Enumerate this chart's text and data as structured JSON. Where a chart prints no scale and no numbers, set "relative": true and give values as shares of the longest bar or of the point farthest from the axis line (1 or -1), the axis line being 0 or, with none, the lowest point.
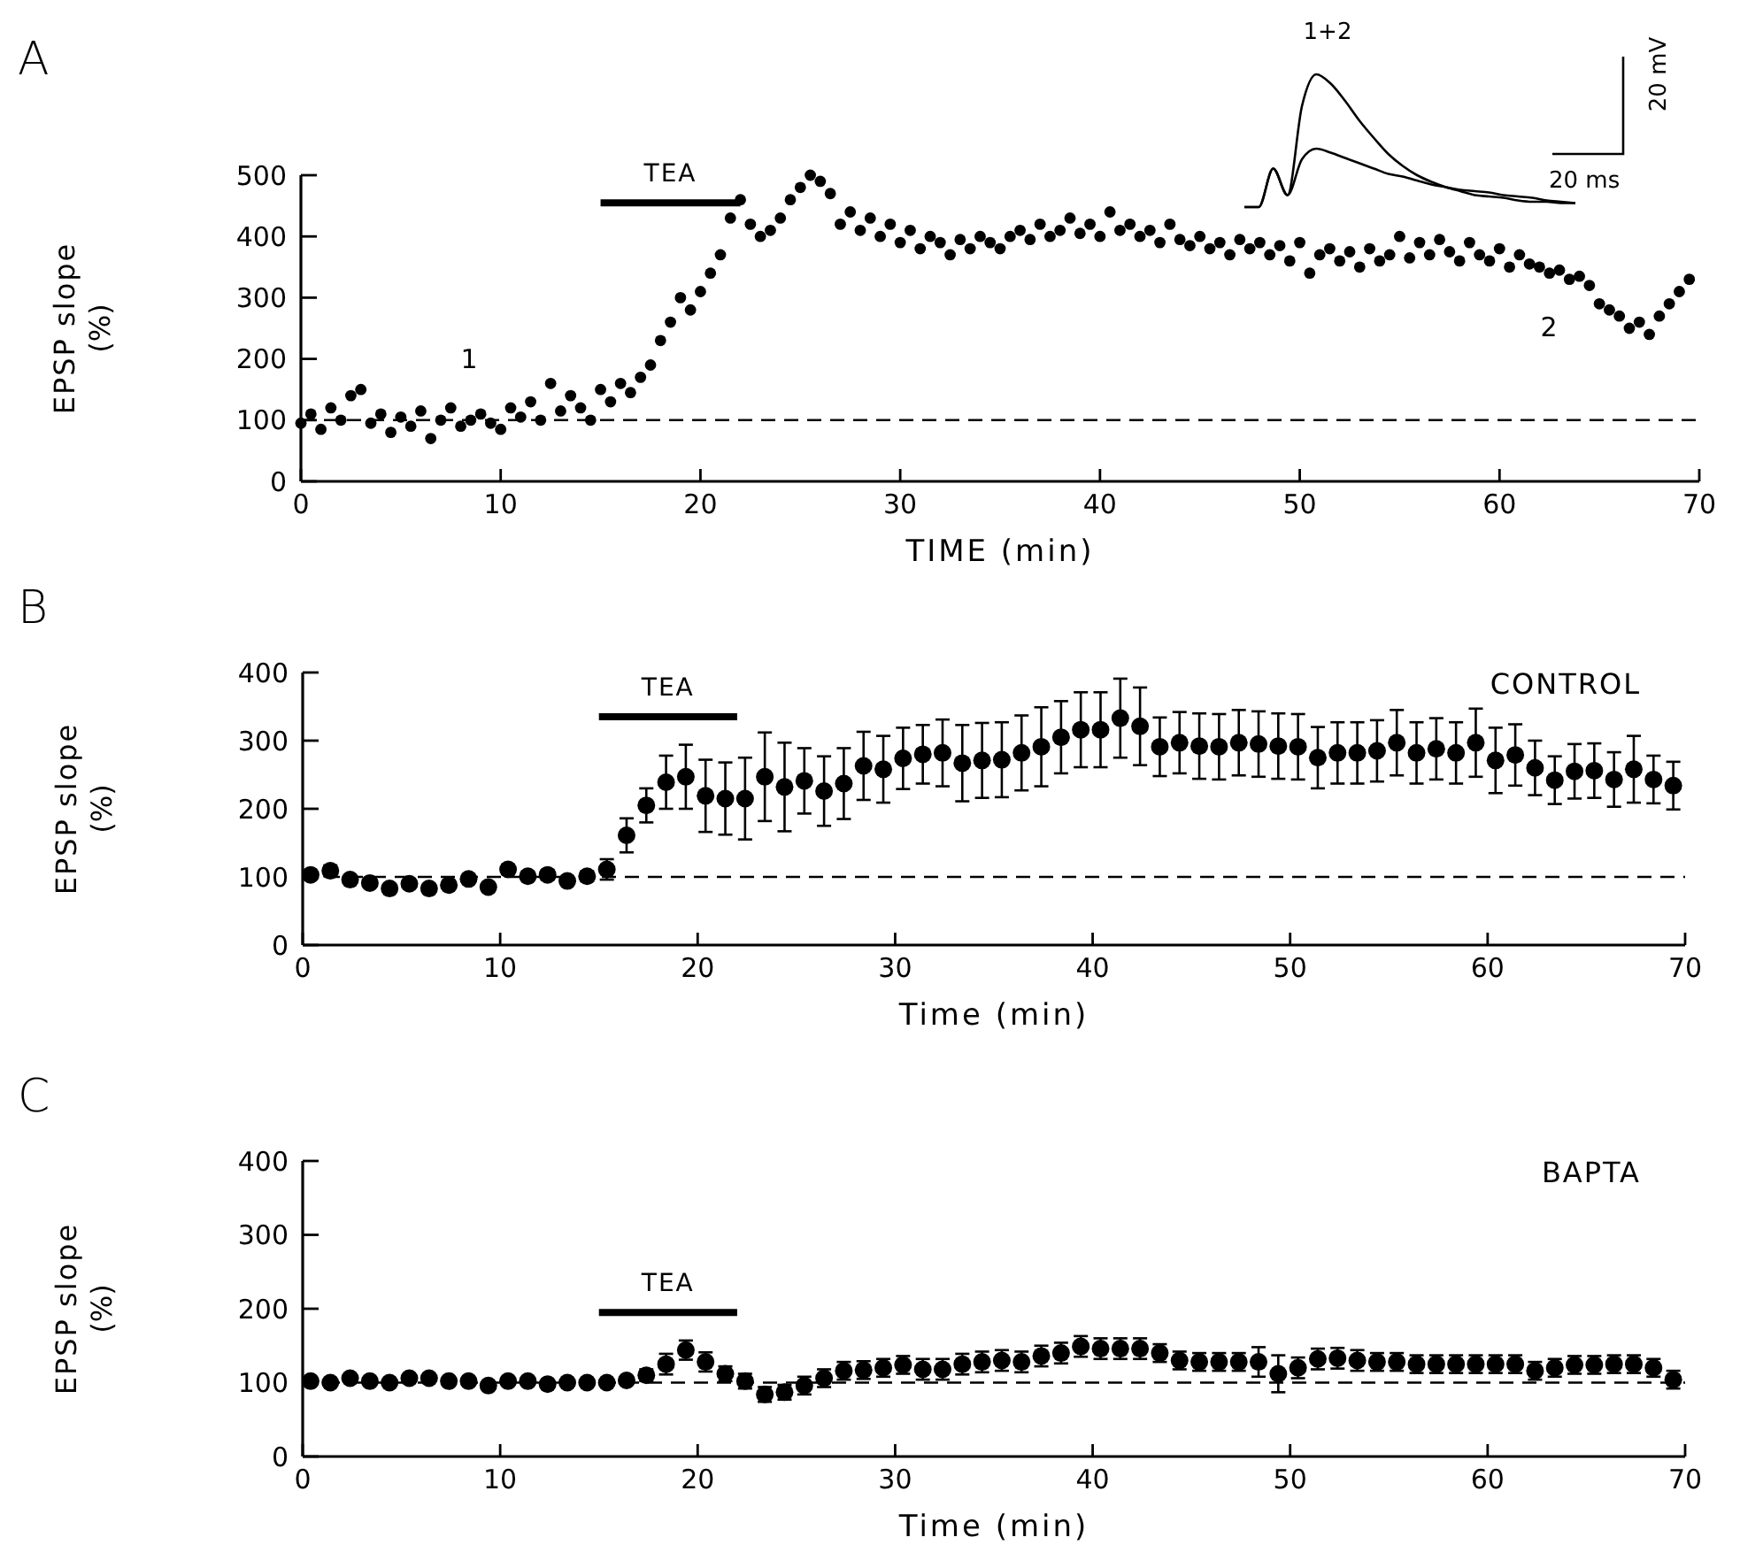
{
  "chart_data": [
    {
      "type": "scatter",
      "title": "A",
      "xlabel": "TIME (min)",
      "ylabel": "EPSP slope (%)",
      "xlim": [
        0,
        70
      ],
      "xticks": [
        0,
        10,
        20,
        30,
        40,
        50,
        60,
        70
      ],
      "ylim": [
        0,
        500
      ],
      "yticks": [
        0,
        100,
        200,
        300,
        400,
        500
      ],
      "grid": false,
      "legend": false,
      "marker": "circle",
      "ref_lines": [
        {
          "axis": "y",
          "value": 100,
          "line_style": "dashed",
          "color": "#000000"
        }
      ],
      "annotations": [
        "1",
        "2"
      ],
      "series": [
        {
          "type": "line",
          "name": "TEA",
          "color": "#000000",
          "x": [
            15,
            22
          ],
          "values": [
            455,
            455
          ],
          "marker": "none"
        },
        {
          "color": "#000000",
          "x": [
            0,
            0.5,
            1,
            1.5,
            2,
            2.5,
            3,
            3.5,
            4,
            4.5,
            5,
            5.5,
            6,
            6.5,
            7,
            7.5,
            8,
            8.5,
            9,
            9.5,
            10,
            10.5,
            11,
            11.5,
            12,
            12.5,
            13,
            13.5,
            14,
            14.5,
            15,
            15.5,
            16,
            16.5,
            17,
            17.5,
            18,
            18.5,
            19,
            19.5,
            20,
            20.5,
            21,
            21.5,
            22,
            22.5,
            23,
            23.5,
            24,
            24.5,
            25,
            25.5,
            26,
            26.5,
            27,
            27.5,
            28,
            28.5,
            29,
            29.5,
            30,
            30.5,
            31,
            31.5,
            32,
            32.5,
            33,
            33.5,
            34,
            34.5,
            35,
            35.5,
            36,
            36.5,
            37,
            37.5,
            38,
            38.5,
            39,
            39.5,
            40,
            40.5,
            41,
            41.5,
            42,
            42.5,
            43,
            43.5,
            44,
            44.5,
            45,
            45.5,
            46,
            46.5,
            47,
            47.5,
            48,
            48.5,
            49,
            49.5,
            50,
            50.5,
            51,
            51.5,
            52,
            52.5,
            53,
            53.5,
            54,
            54.5,
            55,
            55.5,
            56,
            56.5,
            57,
            57.5,
            58,
            58.5,
            59,
            59.5,
            60,
            60.5,
            61,
            61.5,
            62,
            62.5,
            63,
            63.5,
            64,
            64.5,
            65,
            65.5,
            66,
            66.5,
            67,
            67.5,
            68,
            68.5,
            69,
            69.5
          ],
          "values": [
            95,
            110,
            85,
            120,
            100,
            140,
            150,
            95,
            110,
            80,
            105,
            90,
            115,
            70,
            100,
            120,
            90,
            100,
            110,
            95,
            85,
            120,
            105,
            130,
            100,
            160,
            115,
            140,
            120,
            100,
            150,
            130,
            160,
            145,
            170,
            190,
            230,
            260,
            300,
            280,
            310,
            340,
            370,
            430,
            460,
            420,
            400,
            410,
            430,
            460,
            480,
            500,
            490,
            470,
            420,
            440,
            410,
            430,
            400,
            420,
            390,
            410,
            380,
            400,
            390,
            370,
            395,
            380,
            400,
            390,
            380,
            400,
            410,
            395,
            420,
            400,
            410,
            430,
            405,
            420,
            400,
            440,
            410,
            420,
            400,
            410,
            390,
            420,
            395,
            385,
            400,
            380,
            390,
            370,
            395,
            380,
            390,
            370,
            385,
            360,
            390,
            340,
            370,
            380,
            360,
            375,
            350,
            380,
            360,
            370,
            400,
            365,
            390,
            370,
            395,
            375,
            360,
            390,
            370,
            360,
            380,
            350,
            370,
            355,
            350,
            340,
            345,
            330,
            335,
            320,
            290,
            280,
            270,
            250,
            260,
            240,
            270,
            290,
            310,
            330
          ]
        }
      ]
    },
    {
      "type": "line",
      "relative": true,
      "marker": "none",
      "legend": false,
      "annotations": [
        "1+2",
        "20 mV",
        "20 ms"
      ],
      "categories": [
        null,
        null,
        null,
        null,
        null,
        null,
        null,
        null,
        null,
        null,
        null,
        null,
        null,
        null,
        null,
        null,
        null,
        null,
        null,
        null,
        null,
        null,
        null,
        null
      ],
      "series": [
        {
          "color": "#000000",
          "values": [
            0,
            0,
            0.29,
            0.09,
            0.76,
            1,
            0.93,
            0.8,
            0.65,
            0.52,
            0.4,
            0.31,
            0.24,
            0.19,
            0.15,
            0.12,
            0.09,
            0.08,
            0.07,
            0.05,
            0.04,
            0.04,
            0.03,
            0.03
          ]
        },
        {
          "color": "#000000",
          "values": [
            0,
            0,
            0.29,
            0.09,
            0.36,
            0.44,
            0.41,
            0.37,
            0.33,
            0.29,
            0.25,
            0.23,
            0.2,
            0.17,
            0.15,
            0.13,
            0.12,
            0.11,
            0.09,
            0.08,
            0.07,
            0.05,
            0.04,
            0.03
          ]
        }
      ]
    },
    {
      "type": "scatter",
      "title": "B",
      "subtitle": "CONTROL",
      "xlabel": "Time (min)",
      "ylabel": "EPSP slope (%)",
      "xlim": [
        0,
        70
      ],
      "xticks": [
        0,
        10,
        20,
        30,
        40,
        50,
        60,
        70
      ],
      "ylim": [
        0,
        400
      ],
      "yticks": [
        0,
        100,
        200,
        300,
        400
      ],
      "grid": false,
      "legend": false,
      "marker": "circle",
      "ref_lines": [
        {
          "axis": "y",
          "value": 100,
          "line_style": "dashed",
          "color": "#000000"
        }
      ],
      "series": [
        {
          "type": "line",
          "name": "TEA",
          "color": "#000000",
          "x": [
            15,
            22
          ],
          "values": [
            335,
            335
          ],
          "marker": "none"
        },
        {
          "color": "#000000",
          "x": [
            0.4,
            1.4,
            2.4,
            3.4,
            4.4,
            5.4,
            6.4,
            7.4,
            8.4,
            9.4,
            10.4,
            11.4,
            12.4,
            13.4,
            14.4,
            15.4,
            16.4,
            17.4,
            18.4,
            19.4,
            20.4,
            21.4,
            22.4,
            23.4,
            24.4,
            25.4,
            26.4,
            27.4,
            28.4,
            29.4,
            30.4,
            31.4,
            32.4,
            33.4,
            34.4,
            35.4,
            36.4,
            37.4,
            38.4,
            39.4,
            40.4,
            41.4,
            42.4,
            43.4,
            44.4,
            45.4,
            46.4,
            47.4,
            48.4,
            49.4,
            50.4,
            51.4,
            52.4,
            53.4,
            54.4,
            55.4,
            56.4,
            57.4,
            58.4,
            59.4,
            60.4,
            61.4,
            62.4,
            63.4,
            64.4,
            65.4,
            66.4,
            67.4,
            68.4,
            69.4
          ],
          "values": [
            103,
            109,
            96,
            91,
            83,
            90,
            83,
            88,
            97,
            85,
            111,
            101,
            103,
            94,
            101,
            111,
            161,
            205,
            239,
            247,
            219,
            215,
            215,
            247,
            232,
            241,
            226,
            237,
            263,
            258,
            274,
            280,
            282,
            267,
            271,
            272,
            282,
            291,
            305,
            316,
            316,
            333,
            321,
            291,
            297,
            292,
            291,
            297,
            295,
            292,
            291,
            275,
            282,
            282,
            285,
            297,
            282,
            288,
            282,
            297,
            271,
            279,
            260,
            242,
            255,
            256,
            243,
            258,
            243,
            234
          ],
          "errors": [
            6,
            8,
            5,
            5,
            6,
            5,
            6,
            5,
            5,
            6,
            7,
            6,
            7,
            5,
            7,
            15,
            25,
            25,
            39,
            47,
            53,
            53,
            60,
            65,
            65,
            48,
            51,
            52,
            50,
            49,
            45,
            43,
            49,
            56,
            55,
            55,
            55,
            58,
            53,
            55,
            55,
            58,
            57,
            43,
            45,
            48,
            48,
            48,
            48,
            48,
            48,
            45,
            45,
            45,
            45,
            48,
            45,
            45,
            45,
            50,
            48,
            45,
            40,
            35,
            40,
            40,
            40,
            49,
            35,
            35
          ]
        }
      ]
    },
    {
      "type": "scatter",
      "title": "C",
      "subtitle": "BAPTA",
      "xlabel": "Time (min)",
      "ylabel": "EPSP slope (%)",
      "xlim": [
        0,
        70
      ],
      "xticks": [
        0,
        10,
        20,
        30,
        40,
        50,
        60,
        70
      ],
      "ylim": [
        0,
        400
      ],
      "yticks": [
        0,
        100,
        200,
        300,
        400
      ],
      "grid": false,
      "legend": false,
      "marker": "circle",
      "ref_lines": [
        {
          "axis": "y",
          "value": 100,
          "line_style": "dashed",
          "color": "#000000"
        }
      ],
      "series": [
        {
          "type": "line",
          "name": "TEA",
          "color": "#000000",
          "x": [
            15,
            22
          ],
          "values": [
            195,
            195
          ],
          "marker": "none"
        },
        {
          "color": "#000000",
          "x": [
            0.4,
            1.4,
            2.4,
            3.4,
            4.4,
            5.4,
            6.4,
            7.4,
            8.4,
            9.4,
            10.4,
            11.4,
            12.4,
            13.4,
            14.4,
            15.4,
            16.4,
            17.4,
            18.4,
            19.4,
            20.4,
            21.4,
            22.4,
            23.4,
            24.4,
            25.4,
            26.4,
            27.4,
            28.4,
            29.4,
            30.4,
            31.4,
            32.4,
            33.4,
            34.4,
            35.4,
            36.4,
            37.4,
            38.4,
            39.4,
            40.4,
            41.4,
            42.4,
            43.4,
            44.4,
            45.4,
            46.4,
            47.4,
            48.4,
            49.4,
            50.4,
            51.4,
            52.4,
            53.4,
            54.4,
            55.4,
            56.4,
            57.4,
            58.4,
            59.4,
            60.4,
            61.4,
            62.4,
            63.4,
            64.4,
            65.4,
            66.4,
            67.4,
            68.4,
            69.4
          ],
          "values": [
            102,
            100,
            106,
            102,
            100,
            106,
            106,
            102,
            102,
            96,
            102,
            102,
            98,
            100,
            100,
            100,
            103,
            110,
            125,
            144,
            128,
            112,
            102,
            84,
            87,
            96,
            106,
            116,
            117,
            120,
            124,
            118,
            118,
            125,
            128,
            130,
            128,
            136,
            140,
            149,
            146,
            146,
            146,
            140,
            130,
            128,
            128,
            128,
            128,
            112,
            120,
            132,
            133,
            130,
            128,
            128,
            125,
            125,
            125,
            125,
            125,
            125,
            116,
            120,
            124,
            124,
            125,
            125,
            120,
            104
          ],
          "errors": [
            4,
            4,
            4,
            4,
            4,
            4,
            4,
            4,
            4,
            4,
            4,
            4,
            4,
            4,
            4,
            4,
            5,
            8,
            14,
            13,
            13,
            10,
            10,
            10,
            10,
            12,
            12,
            12,
            12,
            12,
            12,
            14,
            14,
            14,
            14,
            14,
            14,
            14,
            14,
            14,
            14,
            14,
            14,
            12,
            12,
            12,
            12,
            12,
            20,
            25,
            14,
            14,
            14,
            14,
            12,
            12,
            12,
            12,
            12,
            12,
            12,
            12,
            12,
            12,
            12,
            12,
            12,
            12,
            12,
            12
          ]
        }
      ]
    }
  ]
}
